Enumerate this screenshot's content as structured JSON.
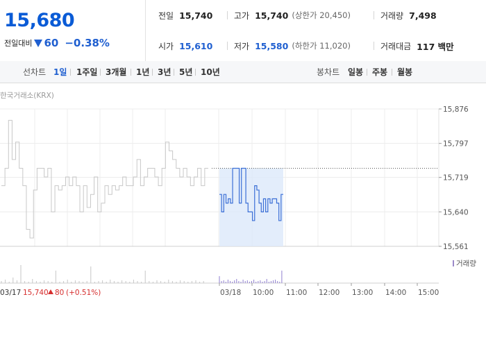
{
  "quote": {
    "price": "15,680",
    "change_label": "전일대비",
    "change_value": "60",
    "change_percent": "−0.38%",
    "change_direction": "down-icon"
  },
  "stats": {
    "prev_close_label": "전일",
    "prev_close": "15,740",
    "high_label": "고가",
    "high": "15,740",
    "upper_limit": "(상한가 20,450)",
    "volume_label": "거래량",
    "volume": "7,498",
    "open_label": "시가",
    "open": "15,610",
    "low_label": "저가",
    "low": "15,580",
    "lower_limit": "(하한가 11,020)",
    "amount_label": "거래대금",
    "amount": "117 백만"
  },
  "toolbar": {
    "line_chart_label": "선차트",
    "line_periods": [
      "1일",
      "1주일",
      "3개월",
      "1년",
      "3년",
      "5년",
      "10년"
    ],
    "active_period": "1일",
    "candle_chart_label": "봉차트",
    "candle_periods": [
      "일봉",
      "주봉",
      "월봉"
    ]
  },
  "chart_data": {
    "type": "line",
    "source_label": "한국거래소(KRX)",
    "y_ticks": [
      15876,
      15797,
      15719,
      15640,
      15561
    ],
    "y_tick_labels": [
      "15,876",
      "15,797",
      "15,719",
      "15,640",
      "15,561"
    ],
    "ylim": [
      15561,
      15876
    ],
    "x_time_labels": [
      "03/18",
      "10:00",
      "11:00",
      "12:00",
      "13:00",
      "14:00",
      "15:00"
    ],
    "previous_close_line": 15740,
    "volume_legend": "거래량",
    "prev_day_summary": {
      "date": "03/17",
      "close": "15,740",
      "change": "80",
      "change_percent": "(+0.51%)"
    },
    "series": [
      {
        "name": "03/17",
        "color": "#c8c8c8",
        "values": [
          15700,
          15740,
          15850,
          15760,
          15800,
          15740,
          15700,
          15600,
          15580,
          15690,
          15740,
          15740,
          15720,
          15740,
          15640,
          15700,
          15690,
          15700,
          15720,
          15700,
          15720,
          15700,
          15640,
          15700,
          15650,
          15680,
          15720,
          15640,
          15660,
          15700,
          15680,
          15700,
          15690,
          15700,
          15720,
          15700,
          15700,
          15720,
          15760,
          15700,
          15720,
          15740,
          15740,
          15720,
          15700,
          15740,
          15800,
          15780,
          15760,
          15740,
          15720,
          15740,
          15720,
          15700,
          15720,
          15740,
          15700,
          15740,
          15740
        ]
      },
      {
        "name": "03/18",
        "color": "#3b6fd6",
        "values": [
          15680,
          15640,
          15680,
          15660,
          15670,
          15660,
          15740,
          15740,
          15740,
          15660,
          15740,
          15740,
          15660,
          15640,
          15640,
          15620,
          15700,
          15690,
          15660,
          15640,
          15670,
          15640,
          15670,
          15660,
          15670,
          15670,
          15660,
          15620,
          15680,
          15680
        ]
      }
    ]
  }
}
